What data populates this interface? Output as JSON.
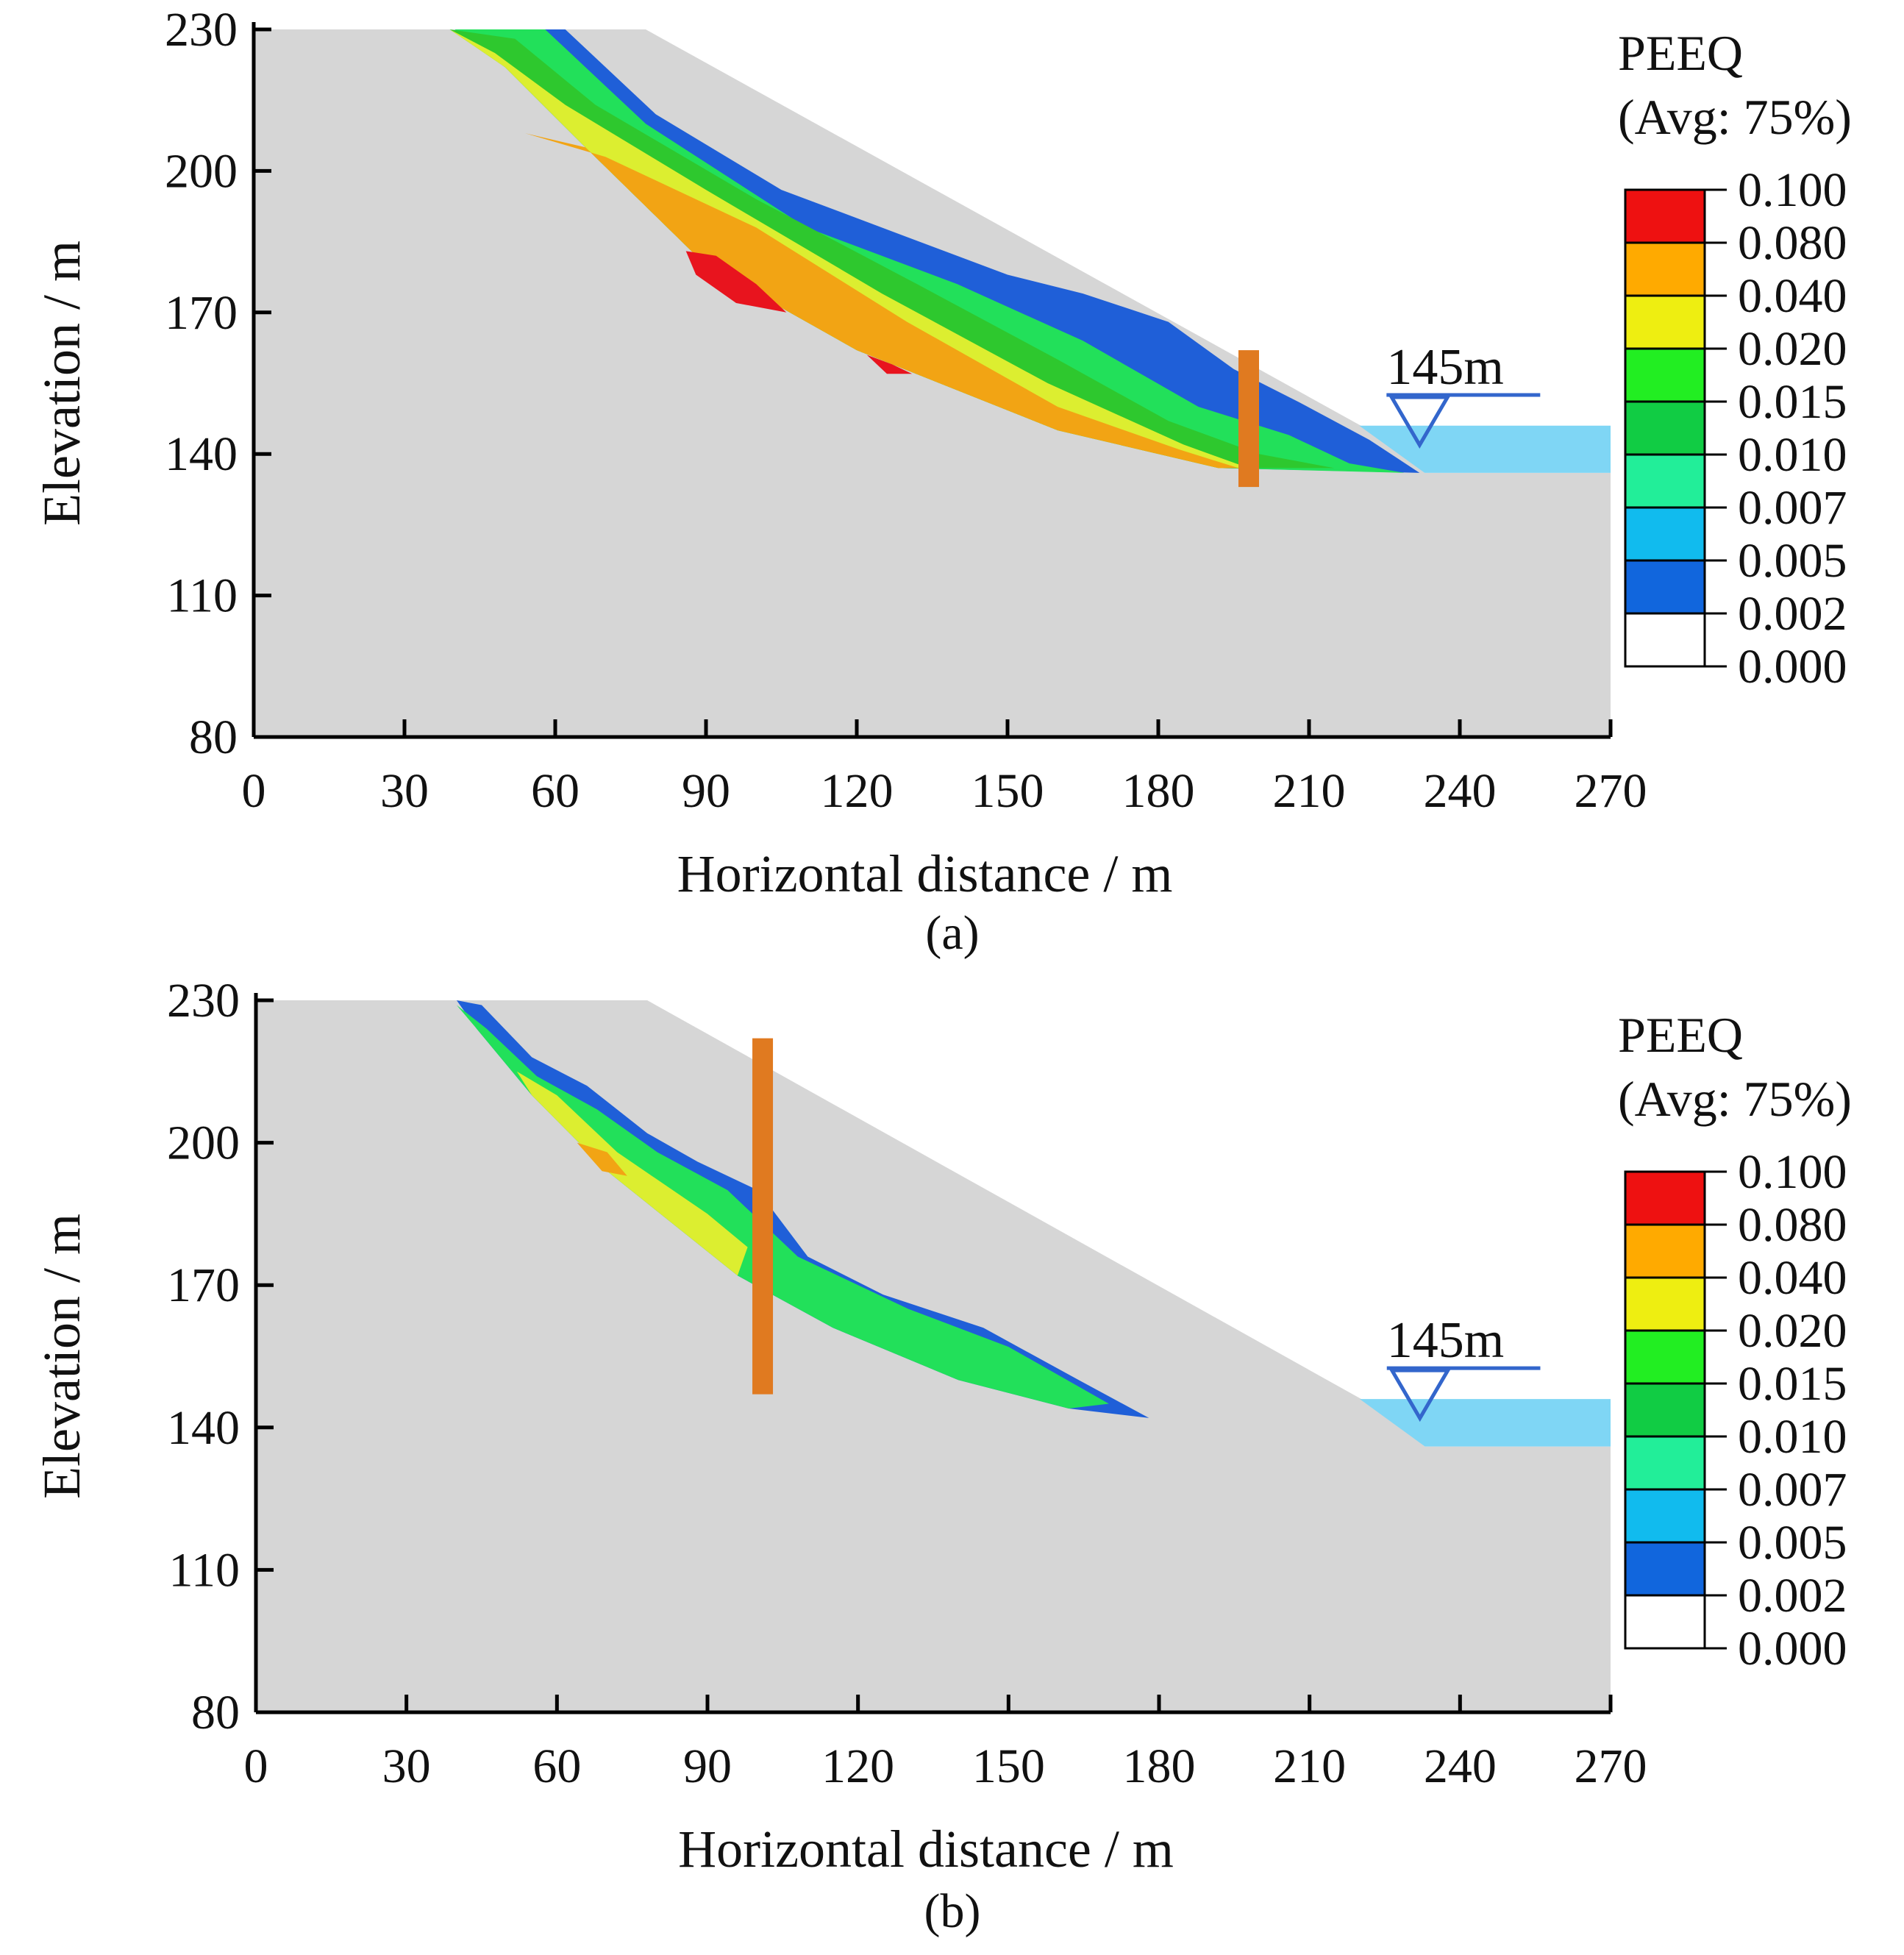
{
  "chart_data": [
    {
      "panel": "a",
      "caption": "(a)",
      "type": "contour",
      "xlabel": "Horizontal distance / m",
      "ylabel": "Elevation / m",
      "xlim": [
        0,
        270
      ],
      "ylim": [
        80,
        230
      ],
      "xticks": [
        0,
        30,
        60,
        90,
        120,
        150,
        180,
        210,
        240,
        270
      ],
      "yticks": [
        80,
        110,
        140,
        170,
        200,
        230
      ],
      "water_level_label": "145m",
      "water_level": 145,
      "slope_profile": [
        [
          0,
          230
        ],
        [
          78,
          230
        ],
        [
          222,
          145
        ],
        [
          233,
          136
        ],
        [
          270,
          136
        ]
      ],
      "pile": {
        "x": 198,
        "y_top": 162,
        "y_bottom": 133
      },
      "contour_bands": [
        {
          "level": 0.002,
          "poly": [
            [
              40,
              230
            ],
            [
              62,
              230
            ],
            [
              80,
              212
            ],
            [
              105,
              196
            ],
            [
              130,
              186
            ],
            [
              150,
              178
            ],
            [
              165,
              174
            ],
            [
              182,
              168
            ],
            [
              195,
              158
            ],
            [
              208,
              151
            ],
            [
              222,
              143
            ],
            [
              232,
              136
            ],
            [
              192,
              137
            ],
            [
              160,
              145
            ],
            [
              120,
              162
            ],
            [
              90,
              180
            ],
            [
              66,
              205
            ],
            [
              50,
              222
            ]
          ]
        },
        {
          "level": 0.01,
          "poly": [
            [
              40,
              230
            ],
            [
              58,
              230
            ],
            [
              78,
              210
            ],
            [
              110,
              188
            ],
            [
              140,
              176
            ],
            [
              165,
              164
            ],
            [
              188,
              150
            ],
            [
              206,
              144
            ],
            [
              218,
              138
            ],
            [
              229,
              136
            ],
            [
              192,
              137
            ],
            [
              160,
              145
            ],
            [
              120,
              162
            ],
            [
              90,
              180
            ],
            [
              66,
              205
            ],
            [
              50,
              222
            ]
          ]
        },
        {
          "level": 0.015,
          "poly": [
            [
              39,
              230
            ],
            [
              52,
              228
            ],
            [
              68,
              214
            ],
            [
              100,
              194
            ],
            [
              132,
              176
            ],
            [
              160,
              160
            ],
            [
              182,
              147
            ],
            [
              200,
              140
            ],
            [
              215,
              137
            ],
            [
              192,
              137
            ],
            [
              160,
              145
            ],
            [
              120,
              162
            ],
            [
              90,
              180
            ],
            [
              66,
              205
            ],
            [
              50,
              222
            ]
          ]
        },
        {
          "level": 0.02,
          "poly": [
            [
              39,
              230
            ],
            [
              48,
              225
            ],
            [
              62,
              214
            ],
            [
              90,
              196
            ],
            [
              125,
              174
            ],
            [
              158,
              155
            ],
            [
              185,
              142
            ],
            [
              198,
              137
            ],
            [
              192,
              137
            ],
            [
              160,
              145
            ],
            [
              120,
              162
            ],
            [
              90,
              180
            ],
            [
              66,
              205
            ],
            [
              50,
              222
            ]
          ]
        },
        {
          "level": 0.04,
          "poly": [
            [
              54,
              208
            ],
            [
              70,
              203
            ],
            [
              100,
              188
            ],
            [
              130,
              168
            ],
            [
              160,
              150
            ],
            [
              184,
              141
            ],
            [
              196,
              137
            ],
            [
              192,
              137
            ],
            [
              160,
              145
            ],
            [
              120,
              162
            ],
            [
              90,
              180
            ],
            [
              66,
              205
            ]
          ]
        },
        {
          "level": 0.08,
          "poly": [
            [
              86,
              183
            ],
            [
              92,
              182
            ],
            [
              100,
              176
            ],
            [
              106,
              170
            ],
            [
              96,
              172
            ],
            [
              88,
              178
            ]
          ]
        },
        {
          "level": 0.08,
          "poly": [
            [
              122,
              161
            ],
            [
              127,
              159
            ],
            [
              131,
              157
            ],
            [
              126,
              157
            ]
          ]
        }
      ]
    },
    {
      "panel": "b",
      "caption": "(b)",
      "type": "contour",
      "xlabel": "Horizontal distance / m",
      "ylabel": "Elevation / m",
      "xlim": [
        0,
        270
      ],
      "ylim": [
        80,
        230
      ],
      "xticks": [
        0,
        30,
        60,
        90,
        120,
        150,
        180,
        210,
        240,
        270
      ],
      "yticks": [
        80,
        110,
        140,
        170,
        200,
        230
      ],
      "water_level_label": "145m",
      "water_level": 145,
      "slope_profile": [
        [
          0,
          230
        ],
        [
          78,
          230
        ],
        [
          222,
          145
        ],
        [
          233,
          136
        ],
        [
          270,
          136
        ]
      ],
      "pile": {
        "x": 101,
        "y_top": 222,
        "y_bottom": 147
      },
      "contour_bands": [
        {
          "level": 0.002,
          "poly": [
            [
              40,
              230
            ],
            [
              45,
              229
            ],
            [
              55,
              218
            ],
            [
              66,
              212
            ],
            [
              78,
              202
            ],
            [
              88,
              196
            ],
            [
              100,
              190
            ],
            [
              110,
              176
            ],
            [
              125,
              168
            ],
            [
              145,
              161
            ],
            [
              164,
              150
            ],
            [
              178,
              142
            ],
            [
              162,
              144
            ],
            [
              140,
              150
            ],
            [
              115,
              161
            ],
            [
              96,
              172
            ],
            [
              70,
              194
            ],
            [
              55,
              210
            ],
            [
              44,
              224
            ]
          ]
        },
        {
          "level": 0.01,
          "poly": [
            [
              40,
              229
            ],
            [
              46,
              224
            ],
            [
              56,
              214
            ],
            [
              68,
              207
            ],
            [
              80,
              198
            ],
            [
              94,
              190
            ],
            [
              108,
              176
            ],
            [
              130,
              165
            ],
            [
              150,
              157
            ],
            [
              170,
              145
            ],
            [
              162,
              144
            ],
            [
              140,
              150
            ],
            [
              115,
              161
            ],
            [
              96,
              172
            ],
            [
              70,
              194
            ],
            [
              55,
              210
            ],
            [
              44,
              224
            ]
          ]
        },
        {
          "level": 0.02,
          "poly": [
            [
              52,
              215
            ],
            [
              60,
              210
            ],
            [
              72,
              198
            ],
            [
              90,
              185
            ],
            [
              98,
              178
            ],
            [
              96,
              172
            ],
            [
              70,
              194
            ],
            [
              55,
              210
            ]
          ]
        },
        {
          "level": 0.04,
          "poly": [
            [
              64,
              200
            ],
            [
              70,
              198
            ],
            [
              74,
              193
            ],
            [
              69,
              194
            ]
          ]
        }
      ]
    }
  ],
  "legend": {
    "title": "PEEQ",
    "subtitle": "(Avg: 75%)",
    "labels": [
      "0.100",
      "0.080",
      "0.040",
      "0.020",
      "0.015",
      "0.010",
      "0.007",
      "0.005",
      "0.002",
      "0.000"
    ],
    "colors": [
      "#ee1111",
      "#ffaa00",
      "#eeee11",
      "#22ee22",
      "#11cc44",
      "#22ee99",
      "#11bbee",
      "#1166dd",
      "#ffffff"
    ]
  },
  "colors": {
    "soil": "#d6d6d6",
    "water": "#7fd6f5",
    "pile": "#e07a20",
    "water_marker": "#3366cc",
    "level_colors": {
      "0.002": "#1f5fd8",
      "0.005": "#19b5ee",
      "0.007": "#22e89a",
      "0.010": "#22e05a",
      "0.015": "#2ec82e",
      "0.020": "#dcee30",
      "0.040": "#f2a414",
      "0.080": "#e8141e"
    }
  }
}
